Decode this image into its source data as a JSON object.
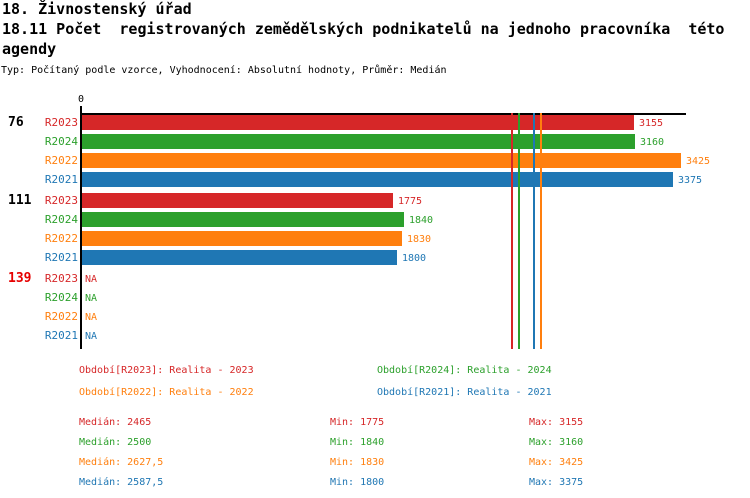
{
  "header": {
    "title_line1": "18. Živnostenský úřad",
    "title_line2": "18.11 Počet  registrovaných zemědělských podnikatelů na jednoho pracovníka  této",
    "title_line3": "agendy",
    "meta_line": "Typ: Počítaný podle vzorce, Vyhodnocení: Absolutní hodnoty, Průměr: Medián"
  },
  "chart_data": {
    "type": "bar",
    "orientation": "horizontal",
    "x_axis": {
      "origin_label": "0",
      "min": 0,
      "max": 3450,
      "gridlines": false
    },
    "na_label": "NA",
    "series_order": [
      "R2023",
      "R2024",
      "R2022",
      "R2021"
    ],
    "series_colors": {
      "R2023": "#d62728",
      "R2024": "#2ca02c",
      "R2022": "#ff7f0e",
      "R2021": "#1f77b4"
    },
    "groups": [
      {
        "label": "76",
        "label_color": "#000000",
        "values": {
          "R2023": 3155,
          "R2024": 3160,
          "R2022": 3425,
          "R2021": 3375
        }
      },
      {
        "label": "111",
        "label_color": "#000000",
        "values": {
          "R2023": 1775,
          "R2024": 1840,
          "R2022": 1830,
          "R2021": 1800
        }
      },
      {
        "label": "139",
        "label_color": "#e60000",
        "values": {
          "R2023": null,
          "R2024": null,
          "R2022": null,
          "R2021": null
        }
      }
    ],
    "median_lines": [
      {
        "series": "R2023",
        "value": 2465
      },
      {
        "series": "R2024",
        "value": 2500
      },
      {
        "series": "R2022",
        "value": 2627.5
      },
      {
        "series": "R2021",
        "value": 2587.5
      }
    ]
  },
  "legend": {
    "items": [
      {
        "series": "R2023",
        "text": "Období[R2023]: Realita - 2023"
      },
      {
        "series": "R2024",
        "text": "Období[R2024]: Realita - 2024"
      },
      {
        "series": "R2022",
        "text": "Období[R2022]: Realita - 2022"
      },
      {
        "series": "R2021",
        "text": "Období[R2021]: Realita - 2021"
      }
    ]
  },
  "stats": {
    "rows": [
      {
        "series": "R2023",
        "cells": [
          "Medián: 2465",
          "Min: 1775",
          "Max: 3155"
        ]
      },
      {
        "series": "R2024",
        "cells": [
          "Medián: 2500",
          "Min: 1840",
          "Max: 3160"
        ]
      },
      {
        "series": "R2022",
        "cells": [
          "Medián: 2627,5",
          "Min: 1830",
          "Max: 3425"
        ]
      },
      {
        "series": "R2021",
        "cells": [
          "Medián: 2587,5",
          "Min: 1800",
          "Max: 3375"
        ]
      }
    ]
  }
}
